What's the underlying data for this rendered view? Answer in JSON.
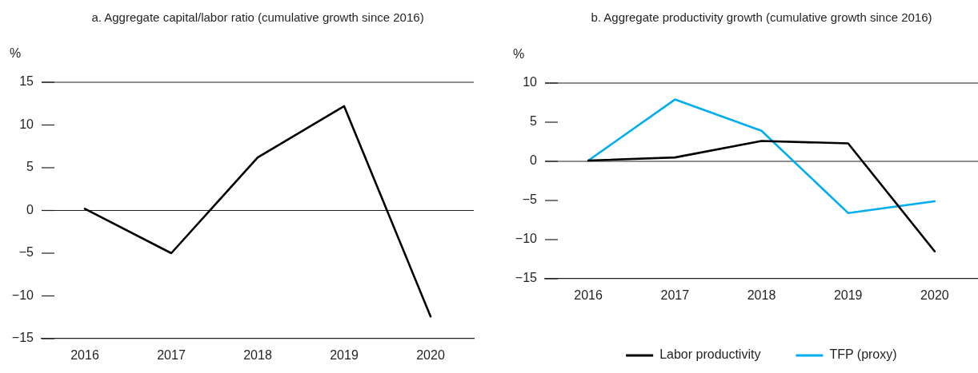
{
  "chart_data": [
    {
      "type": "line",
      "title": "a. Aggregate capital/labor ratio (cumulative growth since 2016)",
      "ylabel": "%",
      "categories": [
        "2016",
        "2017",
        "2018",
        "2019",
        "2020"
      ],
      "values": [
        0.2,
        -5,
        6.2,
        12.2,
        -12.4
      ],
      "color": "#000000",
      "ylim": [
        -15,
        15
      ],
      "yticks": [
        -15,
        -10,
        -5,
        0,
        5,
        10,
        15
      ],
      "grid": false,
      "ref_lines": [
        {
          "axis": "y",
          "value": 0
        }
      ],
      "legend": false,
      "marker": "none",
      "line_style": "solid"
    },
    {
      "type": "line",
      "title": "b. Aggregate productivity growth (cumulative growth since 2016)",
      "ylabel": "%",
      "categories": [
        "2016",
        "2017",
        "2018",
        "2019",
        "2020"
      ],
      "series": [
        {
          "name": "Labor productivity",
          "color": "#000000",
          "values": [
            0.1,
            0.5,
            2.6,
            2.3,
            -11.5
          ]
        },
        {
          "name": "TFP (proxy)",
          "color": "#00aeef",
          "values": [
            0.1,
            7.9,
            3.9,
            -6.6,
            -5.1
          ]
        }
      ],
      "ylim": [
        -15,
        10
      ],
      "yticks": [
        -15,
        -10,
        -5,
        0,
        5,
        10
      ],
      "grid": false,
      "ref_lines": [
        {
          "axis": "y",
          "value": 0
        }
      ],
      "legend": "bottom",
      "marker": "none",
      "line_style": "solid"
    }
  ]
}
